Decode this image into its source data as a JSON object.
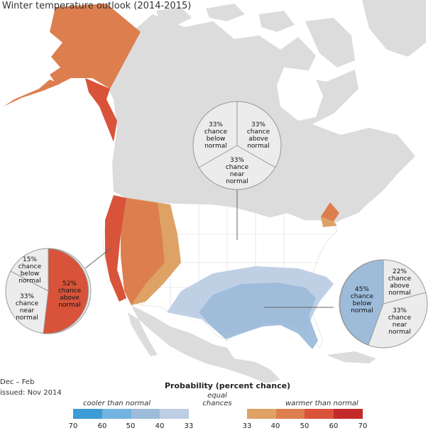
{
  "title": "Winter temperature outlook (2014-2015)",
  "period": "Dec – Feb",
  "issued": "issued: Nov 2014",
  "colors": {
    "land": "#dcdcdc",
    "us_land": "#ffffff",
    "water": "#ffffff",
    "border": "#ffffff",
    "state_line": "#d7d7d7",
    "warm_40": "#dea265",
    "warm_50": "#dd7e4e",
    "warm_60": "#d8533a",
    "cool_40": "#bccde4",
    "cool_50": "#9dbcda",
    "pie_grey": "#ececec",
    "pie_stroke": "#999999"
  },
  "pies": {
    "top": {
      "below": "33%\nchance\nbelow\nnormal",
      "above": "33%\nchance\nabove\nnormal",
      "near": "33%\nchance\nnear\nnormal"
    },
    "left": {
      "below": "15%\nchance\nbelow\nnormal",
      "above": "52%\nchance\nabove\nnormal",
      "near": "33%\nchance\nnear\nnormal"
    },
    "right": {
      "below": "45%\nchance\nbelow\nnormal",
      "above": "22%\nchance\nabove\nnormal",
      "near": "33%\nchance\nnear\nnormal"
    }
  },
  "legend": {
    "title": "Probability (percent chance)",
    "cooler": "cooler than normal",
    "equal": "equal chances",
    "warmer": "warmer than normal",
    "ticks": [
      "70",
      "60",
      "50",
      "40",
      "33",
      "33",
      "40",
      "50",
      "60",
      "70"
    ],
    "segments": [
      "#3b9cd6",
      "#72b3e0",
      "#9dbcda",
      "#bccde4",
      "#ffffff",
      "#ffffff",
      "#dea265",
      "#dd7e4e",
      "#d8533a",
      "#c42a2a"
    ]
  }
}
